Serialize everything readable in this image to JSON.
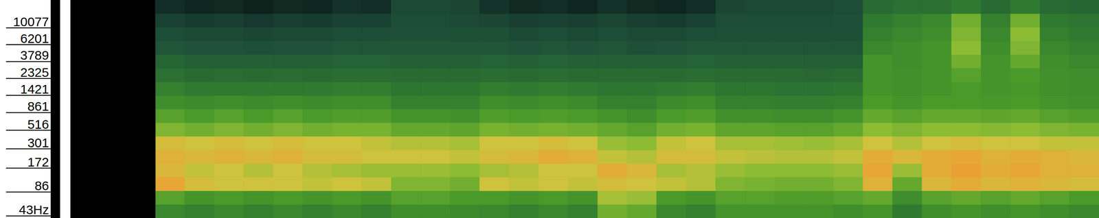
{
  "chart_data": {
    "type": "heatmap",
    "ylim": [
      34,
      19000
    ],
    "yticks": [
      {
        "value": 43,
        "label": "43Hz"
      },
      86,
      172,
      301,
      516,
      861,
      1421,
      2325,
      3789,
      6201,
      10077
    ],
    "log": "y",
    "tick_labels": "y",
    "zlim": [
      0,
      100
    ],
    "cells": [
      [
        54,
        52,
        54,
        52,
        54,
        52,
        54,
        52,
        56,
        56,
        55,
        54,
        52,
        54,
        52,
        66,
        64,
        54,
        52,
        58,
        58,
        58,
        58,
        56,
        58,
        50,
        56,
        58,
        56,
        58,
        56,
        54
      ],
      [
        62,
        58,
        60,
        58,
        60,
        58,
        60,
        58,
        62,
        62,
        60,
        60,
        58,
        60,
        58,
        74,
        72,
        60,
        58,
        62,
        62,
        61,
        61,
        62,
        64,
        56,
        62,
        64,
        62,
        64,
        62,
        60
      ],
      [
        90,
        82,
        80,
        80,
        80,
        78,
        80,
        78,
        68,
        68,
        66,
        80,
        78,
        80,
        78,
        82,
        80,
        78,
        76,
        68,
        67,
        66,
        66,
        68,
        86,
        64,
        84,
        88,
        84,
        86,
        84,
        82
      ],
      [
        84,
        78,
        80,
        76,
        80,
        76,
        74,
        72,
        72,
        72,
        70,
        74,
        76,
        80,
        80,
        88,
        84,
        74,
        76,
        72,
        70,
        70,
        70,
        72,
        90,
        72,
        88,
        92,
        88,
        90,
        86,
        86
      ],
      [
        86,
        84,
        86,
        84,
        86,
        82,
        82,
        80,
        80,
        80,
        78,
        82,
        84,
        88,
        86,
        78,
        76,
        82,
        82,
        78,
        77,
        76,
        76,
        78,
        88,
        84,
        88,
        90,
        86,
        88,
        86,
        84
      ],
      [
        82,
        80,
        82,
        80,
        82,
        80,
        80,
        78,
        76,
        76,
        74,
        80,
        80,
        82,
        80,
        72,
        70,
        78,
        80,
        74,
        74,
        73,
        72,
        74,
        80,
        76,
        80,
        82,
        80,
        80,
        78,
        78
      ],
      [
        68,
        66,
        68,
        66,
        68,
        66,
        67,
        67,
        64,
        64,
        63,
        67,
        66,
        67,
        66,
        64,
        62,
        66,
        67,
        63,
        63,
        62,
        62,
        64,
        70,
        68,
        70,
        70,
        69,
        70,
        68,
        67
      ],
      [
        62,
        60,
        62,
        60,
        62,
        60,
        61,
        61,
        58,
        58,
        57,
        61,
        60,
        61,
        60,
        58,
        56,
        60,
        61,
        57,
        57,
        56,
        56,
        58,
        64,
        62,
        64,
        64,
        63,
        64,
        62,
        61
      ],
      [
        56,
        55,
        56,
        55,
        56,
        55,
        56,
        56,
        52,
        52,
        52,
        56,
        55,
        56,
        55,
        52,
        52,
        55,
        56,
        52,
        52,
        51,
        51,
        52,
        60,
        58,
        60,
        60,
        59,
        60,
        58,
        57
      ],
      [
        52,
        50,
        50,
        50,
        50,
        50,
        51,
        51,
        48,
        48,
        48,
        51,
        50,
        51,
        50,
        48,
        48,
        50,
        51,
        48,
        48,
        47,
        47,
        48,
        58,
        57,
        58,
        60,
        58,
        59,
        57,
        56
      ],
      [
        46,
        44,
        45,
        44,
        45,
        44,
        45,
        45,
        44,
        44,
        44,
        45,
        44,
        45,
        44,
        44,
        44,
        44,
        45,
        44,
        44,
        44,
        43,
        44,
        58,
        57,
        58,
        62,
        58,
        60,
        57,
        56
      ],
      [
        42,
        40,
        40,
        40,
        40,
        40,
        41,
        41,
        40,
        40,
        40,
        41,
        40,
        41,
        40,
        40,
        40,
        40,
        41,
        40,
        40,
        40,
        40,
        40,
        58,
        56,
        58,
        66,
        58,
        64,
        56,
        54
      ],
      [
        36,
        35,
        35,
        34,
        35,
        35,
        36,
        36,
        37,
        37,
        36,
        36,
        35,
        36,
        35,
        36,
        34,
        35,
        36,
        36,
        36,
        36,
        36,
        36,
        54,
        56,
        58,
        70,
        56,
        68,
        54,
        52
      ],
      [
        32,
        30,
        30,
        28,
        30,
        30,
        32,
        32,
        34,
        34,
        33,
        33,
        30,
        32,
        30,
        32,
        30,
        30,
        32,
        33,
        33,
        33,
        33,
        34,
        52,
        54,
        56,
        68,
        54,
        70,
        52,
        50
      ],
      [
        26,
        22,
        24,
        20,
        24,
        22,
        26,
        26,
        32,
        32,
        30,
        28,
        24,
        26,
        24,
        28,
        24,
        22,
        26,
        32,
        32,
        32,
        32,
        34,
        50,
        52,
        54,
        66,
        52,
        66,
        50,
        48
      ],
      [
        14,
        10,
        12,
        8,
        12,
        10,
        16,
        14,
        30,
        30,
        28,
        18,
        12,
        14,
        10,
        16,
        12,
        10,
        14,
        28,
        30,
        30,
        30,
        32,
        44,
        46,
        46,
        50,
        44,
        50,
        44,
        42
      ]
    ]
  }
}
